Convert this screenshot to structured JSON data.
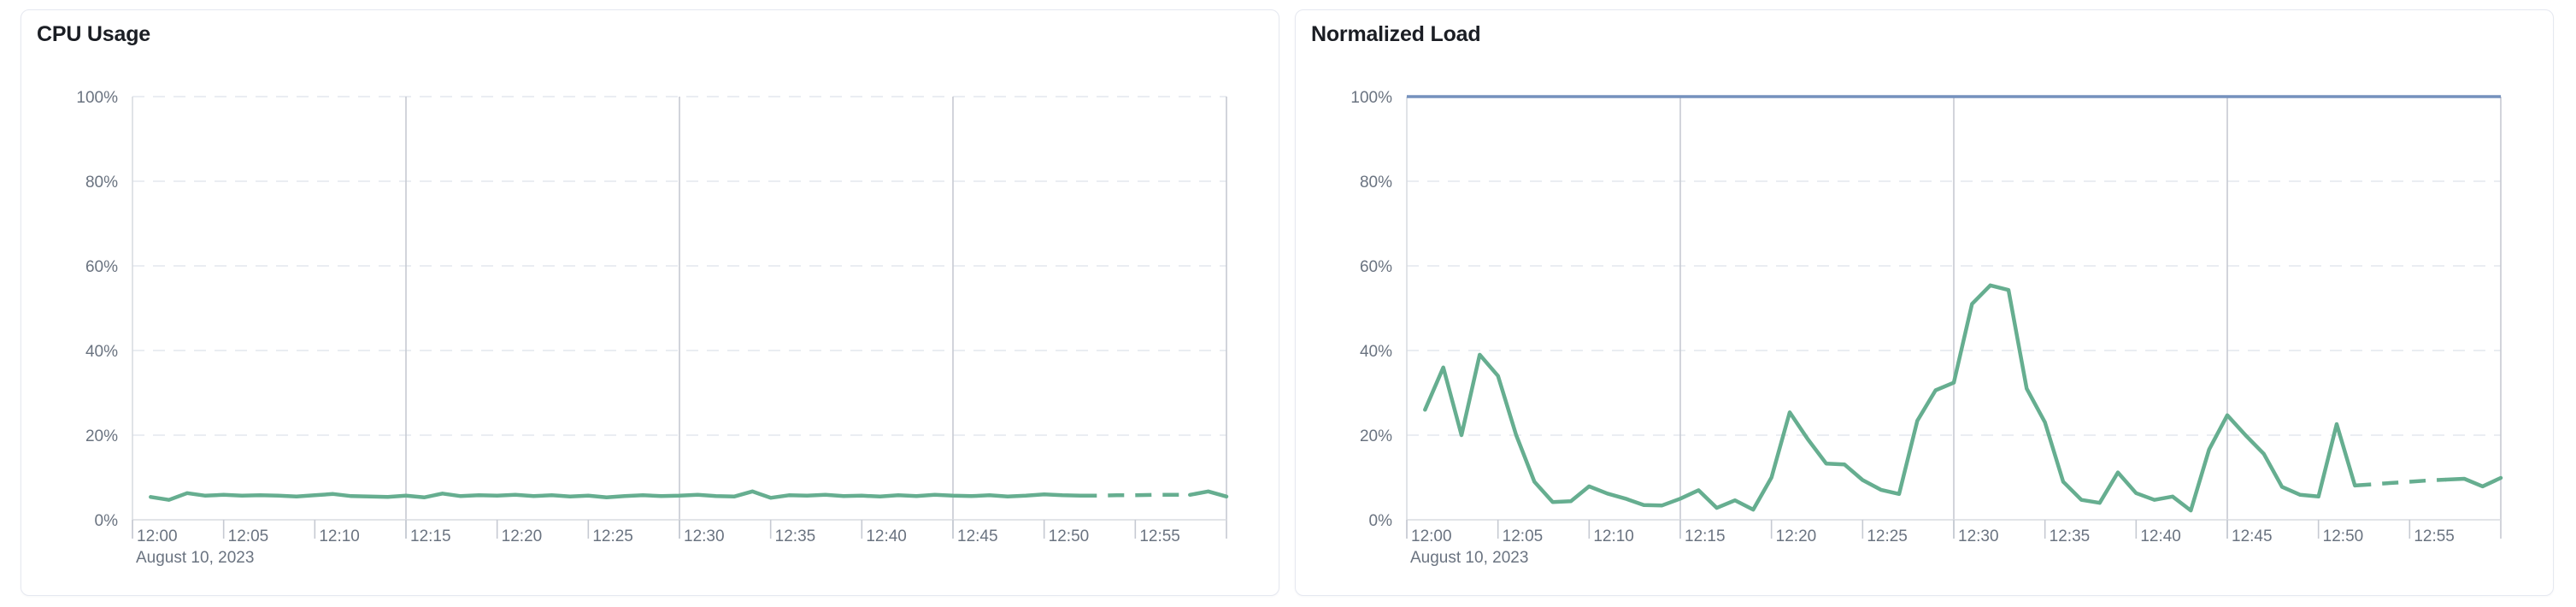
{
  "colors": {
    "series_green": "#66ae90",
    "max_line_blue": "#7591bd",
    "grid_dashed": "#e4e7ee",
    "grid_solid": "#c6cad2",
    "axis_line": "#d9dce1",
    "tick_label": "#6a7380",
    "title_text": "#1b1e24",
    "card_border": "#e5e8f0"
  },
  "chart_data": [
    {
      "type": "line",
      "title": "CPU Usage",
      "date_label": "August 10, 2023",
      "ylim": [
        0,
        100
      ],
      "grid": "horizontal-dashed, vertical-solid-15min",
      "legend_position": "none",
      "y_ticks": [
        {
          "value": 0,
          "label": "0%"
        },
        {
          "value": 20,
          "label": "20%"
        },
        {
          "value": 40,
          "label": "40%"
        },
        {
          "value": 60,
          "label": "60%"
        },
        {
          "value": 80,
          "label": "80%"
        },
        {
          "value": 100,
          "label": "100%"
        }
      ],
      "x_ticks": [
        {
          "minute": 0,
          "label": "12:00"
        },
        {
          "minute": 5,
          "label": "12:05"
        },
        {
          "minute": 10,
          "label": "12:10"
        },
        {
          "minute": 15,
          "label": "12:15"
        },
        {
          "minute": 20,
          "label": "12:20"
        },
        {
          "minute": 25,
          "label": "12:25"
        },
        {
          "minute": 30,
          "label": "12:30"
        },
        {
          "minute": 35,
          "label": "12:35"
        },
        {
          "minute": 40,
          "label": "12:40"
        },
        {
          "minute": 45,
          "label": "12:45"
        },
        {
          "minute": 50,
          "label": "12:50"
        },
        {
          "minute": 55,
          "label": "12:55"
        }
      ],
      "grid_minutes": [
        15,
        30,
        45,
        60
      ],
      "series": [
        {
          "name": "cpu-usage",
          "color": "#66ae90",
          "stroke_width": 4.5,
          "start_minute": 1,
          "interval_minutes": 1,
          "dashed_range_minutes": [
            52,
            58
          ],
          "values": [
            5.4,
            4.7,
            6.3,
            5.7,
            5.9,
            5.7,
            5.8,
            5.7,
            5.5,
            5.8,
            6.1,
            5.6,
            5.5,
            5.4,
            5.7,
            5.3,
            6.2,
            5.6,
            5.8,
            5.7,
            5.9,
            5.6,
            5.8,
            5.5,
            5.7,
            5.3,
            5.6,
            5.8,
            5.6,
            5.7,
            5.9,
            5.6,
            5.5,
            6.7,
            5.2,
            5.8,
            5.7,
            5.9,
            5.6,
            5.7,
            5.5,
            5.8,
            5.6,
            5.9,
            5.7,
            5.6,
            5.8,
            5.5,
            5.7,
            6.0,
            5.8,
            5.7,
            5.7,
            5.8,
            5.8,
            5.9,
            5.9,
            5.9,
            6.7,
            5.5
          ]
        }
      ]
    },
    {
      "type": "line",
      "title": "Normalized Load",
      "date_label": "August 10, 2023",
      "ylim": [
        0,
        100
      ],
      "grid": "horizontal-dashed, vertical-solid-15min",
      "legend_position": "none",
      "y_ticks": [
        {
          "value": 0,
          "label": "0%"
        },
        {
          "value": 20,
          "label": "20%"
        },
        {
          "value": 40,
          "label": "40%"
        },
        {
          "value": 60,
          "label": "60%"
        },
        {
          "value": 80,
          "label": "80%"
        },
        {
          "value": 100,
          "label": "100%"
        }
      ],
      "x_ticks": [
        {
          "minute": 0,
          "label": "12:00"
        },
        {
          "minute": 5,
          "label": "12:05"
        },
        {
          "minute": 10,
          "label": "12:10"
        },
        {
          "minute": 15,
          "label": "12:15"
        },
        {
          "minute": 20,
          "label": "12:20"
        },
        {
          "minute": 25,
          "label": "12:25"
        },
        {
          "minute": 30,
          "label": "12:30"
        },
        {
          "minute": 35,
          "label": "12:35"
        },
        {
          "minute": 40,
          "label": "12:40"
        },
        {
          "minute": 45,
          "label": "12:45"
        },
        {
          "minute": 50,
          "label": "12:50"
        },
        {
          "minute": 55,
          "label": "12:55"
        }
      ],
      "grid_minutes": [
        15,
        30,
        45,
        60
      ],
      "series": [
        {
          "name": "max-capacity",
          "type": "hline",
          "color": "#7591bd",
          "stroke_width": 3.5,
          "value": 100
        },
        {
          "name": "normalized-load",
          "color": "#66ae90",
          "stroke_width": 4.5,
          "start_minute": 1,
          "interval_minutes": 1,
          "dashed_range_minutes": [
            52,
            57
          ],
          "values": [
            26,
            36,
            20,
            39,
            34,
            20,
            9,
            4.2,
            4.4,
            7.9,
            6.2,
            5,
            3.5,
            3.4,
            5,
            7,
            2.8,
            4.6,
            2.4,
            10,
            25.4,
            19,
            13.3,
            13.1,
            9.4,
            7.1,
            6.1,
            23.4,
            30.6,
            32.4,
            51,
            55.4,
            54.3,
            31,
            23,
            9,
            4.7,
            4,
            11.2,
            6.3,
            4.7,
            5.5,
            2.2,
            16.6,
            24.7,
            20,
            15.6,
            7.8,
            5.9,
            5.5,
            22.6,
            8.1,
            8.4,
            8.7,
            9.0,
            9.3,
            9.5,
            9.7,
            7.9,
            9.9
          ]
        }
      ]
    }
  ]
}
